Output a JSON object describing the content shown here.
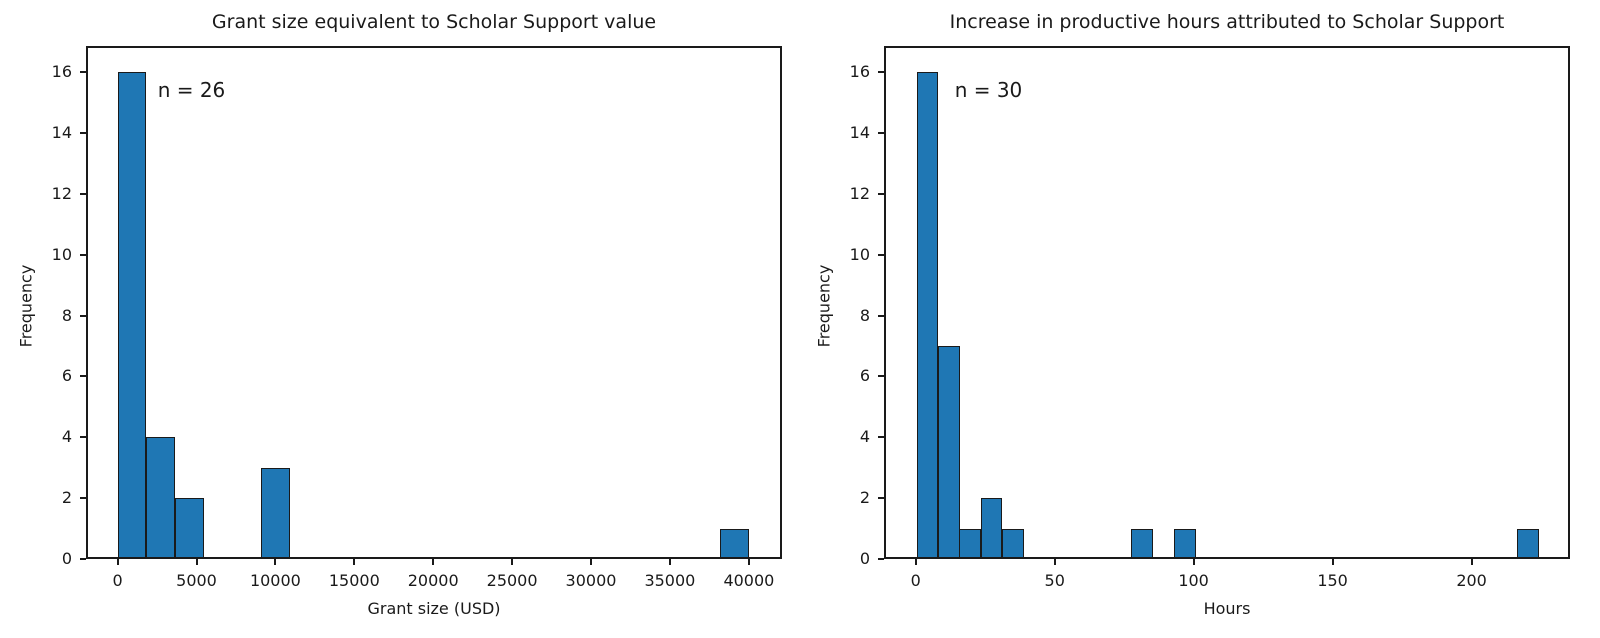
{
  "figure": {
    "background_color": "#ffffff",
    "bar_fill_color": "#1f77b4",
    "bar_edge_color": "#1a1a1a",
    "text_color": "#1a1a1a"
  },
  "chart_data": [
    {
      "type": "bar",
      "subtype": "histogram",
      "title": "Grant size equivalent to Scholar Support value",
      "xlabel": "Grant size (USD)",
      "ylabel": "Frequency",
      "annotation": "n = 26",
      "sample_size": 26,
      "grid": false,
      "legend": false,
      "xlim": [
        -2000,
        42100
      ],
      "ylim": [
        0,
        16.86
      ],
      "xticks": [
        0,
        5000,
        10000,
        15000,
        20000,
        25000,
        30000,
        35000,
        40000
      ],
      "yticks": [
        0,
        2,
        4,
        6,
        8,
        10,
        12,
        14,
        16
      ],
      "bin_start": 0,
      "bin_width": 1818.18,
      "counts": [
        16,
        4,
        2,
        0,
        0,
        3,
        0,
        0,
        0,
        0,
        0,
        0,
        0,
        0,
        0,
        0,
        0,
        0,
        0,
        0,
        0,
        1
      ]
    },
    {
      "type": "bar",
      "subtype": "histogram",
      "title": "Increase in productive hours attributed to Scholar Support",
      "xlabel": "Hours",
      "ylabel": "Frequency",
      "annotation": "n = 30",
      "sample_size": 30,
      "grid": false,
      "legend": false,
      "xlim": [
        -11.4,
        235.4
      ],
      "ylim": [
        0,
        16.86
      ],
      "xticks": [
        0,
        50,
        100,
        150,
        200
      ],
      "yticks": [
        0,
        2,
        4,
        6,
        8,
        10,
        12,
        14,
        16
      ],
      "bin_start": 0.3,
      "bin_width": 7.72,
      "counts": [
        16,
        7,
        1,
        2,
        1,
        0,
        0,
        0,
        0,
        0,
        1,
        0,
        1,
        0,
        0,
        0,
        0,
        0,
        0,
        0,
        0,
        0,
        0,
        0,
        0,
        0,
        0,
        0,
        1
      ]
    }
  ]
}
